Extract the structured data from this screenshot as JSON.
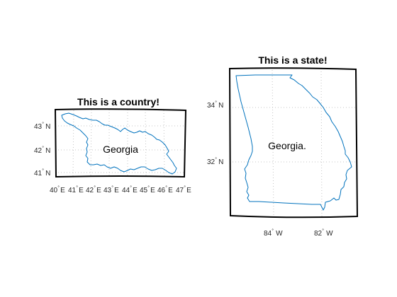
{
  "colors": {
    "background": "#ffffff",
    "border_line": "#0072bd",
    "frame": "#000000",
    "grid": "#c4c4c4"
  },
  "maps": [
    {
      "title": "This is a country!",
      "place_label": "Georgia",
      "lat_ticks": [
        {
          "value": "43",
          "hemi": "N"
        },
        {
          "value": "42",
          "hemi": "N"
        },
        {
          "value": "41",
          "hemi": "N"
        }
      ],
      "lon_ticks": [
        {
          "value": "40",
          "hemi": "E"
        },
        {
          "value": "41",
          "hemi": "E"
        },
        {
          "value": "42",
          "hemi": "E"
        },
        {
          "value": "43",
          "hemi": "E"
        },
        {
          "value": "44",
          "hemi": "E"
        },
        {
          "value": "45",
          "hemi": "E"
        },
        {
          "value": "46",
          "hemi": "E"
        },
        {
          "value": "47",
          "hemi": "E"
        }
      ]
    },
    {
      "title": "This is a state!",
      "place_label": "Georgia.",
      "lat_ticks": [
        {
          "value": "34",
          "hemi": "N"
        },
        {
          "value": "32",
          "hemi": "N"
        }
      ],
      "lon_ticks": [
        {
          "value": "84",
          "hemi": "W"
        },
        {
          "value": "82",
          "hemi": "W"
        }
      ]
    }
  ],
  "degree_symbol": "°"
}
